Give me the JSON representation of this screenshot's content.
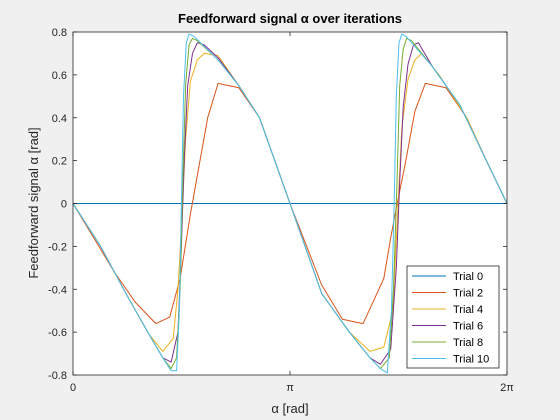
{
  "chart_data": {
    "type": "line",
    "title": "Feedforward signal α over iterations",
    "xlabel": "α [rad]",
    "ylabel": "Feedforward signal α [rad]",
    "xlim": [
      0,
      6.2832
    ],
    "ylim": [
      -0.8,
      0.8
    ],
    "xticks": [
      0,
      3.1416,
      6.2832
    ],
    "xticklabels": [
      "0",
      "π",
      "2π"
    ],
    "yticks": [
      -0.8,
      -0.6,
      -0.4,
      -0.2,
      0,
      0.2,
      0.4,
      0.6,
      0.8
    ],
    "yticklabels": [
      "-0.8",
      "-0.6",
      "-0.4",
      "-0.2",
      "0",
      "0.2",
      "0.4",
      "0.6",
      "0.8"
    ],
    "grid": false,
    "legend_position": "bottom-right",
    "series": [
      {
        "name": "Trial 0",
        "color": "#0072bd",
        "x": [
          0,
          6.2832
        ],
        "y": [
          0,
          0
        ]
      },
      {
        "name": "Trial 2",
        "color": "#d95319",
        "x": [
          0,
          0.3,
          0.6,
          0.9,
          1.2,
          1.4,
          1.55,
          1.7,
          1.8,
          1.95,
          2.1,
          2.4,
          2.7,
          3.1416,
          3.6,
          3.9,
          4.2,
          4.5,
          4.6,
          4.7,
          4.8,
          4.95,
          5.1,
          5.4,
          5.7,
          6.0,
          6.2832
        ],
        "y": [
          0,
          -0.16,
          -0.32,
          -0.46,
          -0.56,
          -0.53,
          -0.35,
          -0.05,
          0.13,
          0.4,
          0.56,
          0.54,
          0.4,
          0,
          -0.38,
          -0.54,
          -0.56,
          -0.35,
          -0.16,
          0.01,
          0.17,
          0.43,
          0.56,
          0.54,
          0.4,
          0.19,
          0
        ]
      },
      {
        "name": "Trial 4",
        "color": "#edb120",
        "x": [
          0,
          0.4,
          0.8,
          1.1,
          1.3,
          1.45,
          1.52,
          1.58,
          1.63,
          1.7,
          1.8,
          1.9,
          2.1,
          2.4,
          2.7,
          3.1416,
          3.6,
          4.0,
          4.3,
          4.5,
          4.63,
          4.7,
          4.76,
          4.85,
          4.95,
          5.05,
          5.3,
          5.7,
          6.0,
          6.2832
        ],
        "y": [
          0,
          -0.2,
          -0.44,
          -0.61,
          -0.69,
          -0.63,
          -0.4,
          -0.05,
          0.3,
          0.57,
          0.67,
          0.7,
          0.69,
          0.55,
          0.4,
          0,
          -0.42,
          -0.6,
          -0.69,
          -0.67,
          -0.5,
          -0.05,
          0.35,
          0.58,
          0.67,
          0.7,
          0.6,
          0.4,
          0.19,
          0
        ]
      },
      {
        "name": "Trial 6",
        "color": "#7e2f8e",
        "x": [
          0,
          0.4,
          0.8,
          1.1,
          1.3,
          1.42,
          1.52,
          1.57,
          1.61,
          1.66,
          1.73,
          1.8,
          1.9,
          2.1,
          2.4,
          2.7,
          3.1416,
          3.6,
          4.0,
          4.3,
          4.45,
          4.6,
          4.68,
          4.73,
          4.78,
          4.85,
          4.93,
          5.0,
          5.2,
          5.6,
          6.0,
          6.2832
        ],
        "y": [
          0,
          -0.2,
          -0.44,
          -0.61,
          -0.72,
          -0.74,
          -0.6,
          -0.2,
          0.2,
          0.55,
          0.7,
          0.75,
          0.74,
          0.68,
          0.55,
          0.4,
          0,
          -0.42,
          -0.6,
          -0.72,
          -0.75,
          -0.68,
          -0.3,
          0.1,
          0.45,
          0.65,
          0.74,
          0.75,
          0.64,
          0.46,
          0.19,
          0
        ]
      },
      {
        "name": "Trial 8",
        "color": "#77ac30",
        "x": [
          0,
          0.4,
          0.8,
          1.1,
          1.3,
          1.42,
          1.5,
          1.55,
          1.59,
          1.63,
          1.68,
          1.73,
          1.8,
          2.1,
          2.4,
          2.7,
          3.1416,
          3.6,
          4.0,
          4.3,
          4.45,
          4.58,
          4.64,
          4.69,
          4.73,
          4.78,
          4.83,
          4.9,
          5.2,
          5.6,
          6.0,
          6.2832
        ],
        "y": [
          0,
          -0.2,
          -0.44,
          -0.61,
          -0.72,
          -0.77,
          -0.72,
          -0.4,
          0.1,
          0.55,
          0.74,
          0.77,
          0.76,
          0.67,
          0.55,
          0.4,
          0,
          -0.42,
          -0.6,
          -0.72,
          -0.77,
          -0.72,
          -0.4,
          0.1,
          0.55,
          0.72,
          0.77,
          0.76,
          0.64,
          0.46,
          0.19,
          0
        ]
      },
      {
        "name": "Trial 10",
        "color": "#4dbeee",
        "x": [
          0,
          0.4,
          0.8,
          1.1,
          1.3,
          1.42,
          1.5,
          1.54,
          1.57,
          1.6,
          1.64,
          1.68,
          1.75,
          2.1,
          2.4,
          2.7,
          3.1416,
          3.6,
          4.0,
          4.3,
          4.45,
          4.55,
          4.61,
          4.65,
          4.68,
          4.72,
          4.76,
          4.82,
          5.2,
          5.6,
          6.0,
          6.2832
        ],
        "y": [
          0,
          -0.2,
          -0.44,
          -0.61,
          -0.72,
          -0.78,
          -0.78,
          -0.5,
          0.0,
          0.5,
          0.75,
          0.79,
          0.78,
          0.67,
          0.55,
          0.4,
          0,
          -0.42,
          -0.6,
          -0.72,
          -0.77,
          -0.79,
          -0.5,
          0.0,
          0.5,
          0.75,
          0.79,
          0.78,
          0.64,
          0.46,
          0.19,
          0
        ]
      }
    ]
  }
}
